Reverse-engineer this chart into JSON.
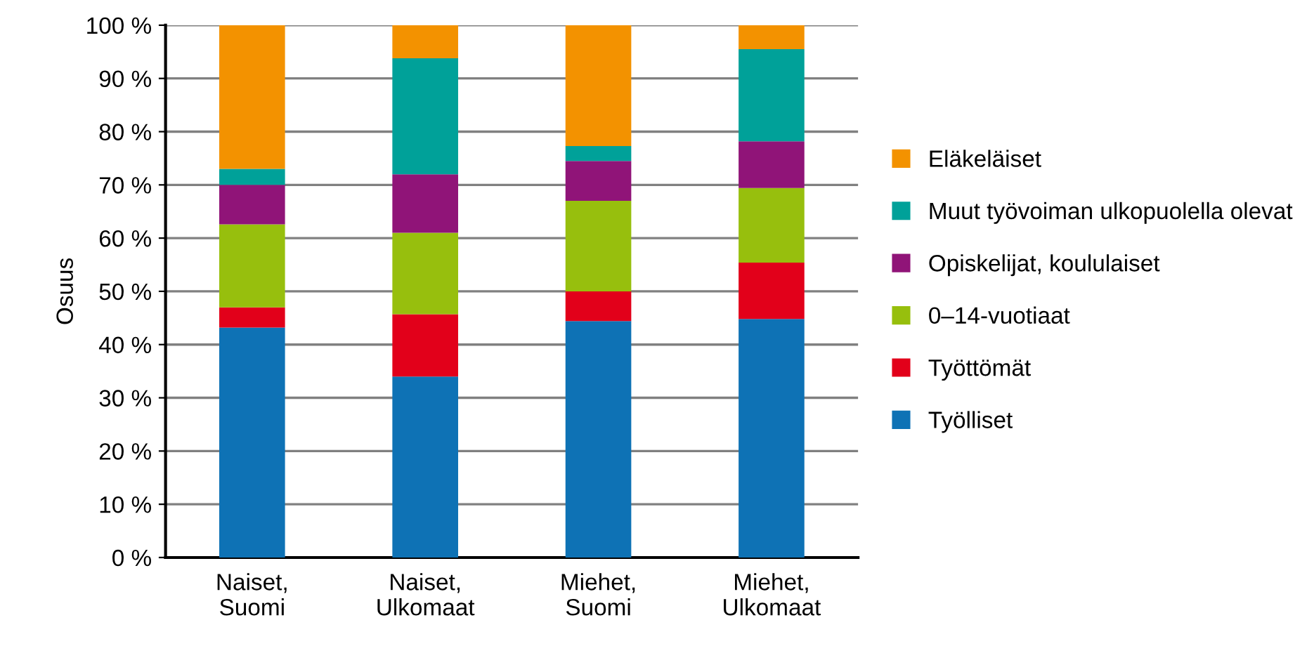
{
  "chart_data": {
    "type": "bar",
    "stacked": true,
    "ylabel": "Osuus",
    "categories": [
      "Naiset,\nSuomi",
      "Naiset,\nUlkomaat",
      "Miehet,\nSuomi",
      "Miehet,\nUlkomaat"
    ],
    "series": [
      {
        "name": "Työlliset",
        "color": "#0e72b5",
        "values": [
          43.2,
          34.0,
          44.4,
          44.8
        ]
      },
      {
        "name": "Työttömät",
        "color": "#e2001a",
        "values": [
          3.8,
          11.7,
          5.6,
          10.6
        ]
      },
      {
        "name": "0–14-vuotiaat",
        "color": "#97bf0d",
        "values": [
          15.6,
          15.3,
          17.0,
          14.0
        ]
      },
      {
        "name": "Opiskelijat, koululaiset",
        "color": "#901478",
        "values": [
          7.4,
          11.0,
          7.5,
          8.8
        ]
      },
      {
        "name": "Muut työvoiman ulkopuolella olevat",
        "color": "#00a199",
        "values": [
          3.0,
          21.8,
          2.8,
          17.3
        ]
      },
      {
        "name": "Eläkeläiset",
        "color": "#f39200",
        "values": [
          27.0,
          6.2,
          22.7,
          4.5
        ]
      }
    ],
    "ylim": [
      0,
      100
    ],
    "yticks": [
      {
        "value": 0,
        "label": "0 %"
      },
      {
        "value": 10,
        "label": "10 %"
      },
      {
        "value": 20,
        "label": "20 %"
      },
      {
        "value": 30,
        "label": "30 %"
      },
      {
        "value": 40,
        "label": "40 %"
      },
      {
        "value": 50,
        "label": "50 %"
      },
      {
        "value": 60,
        "label": "60 %"
      },
      {
        "value": 70,
        "label": "70 %"
      },
      {
        "value": 80,
        "label": "80 %"
      },
      {
        "value": 90,
        "label": "90 %"
      },
      {
        "value": 100,
        "label": "100 %"
      }
    ],
    "grid": "y",
    "legend": "right"
  }
}
